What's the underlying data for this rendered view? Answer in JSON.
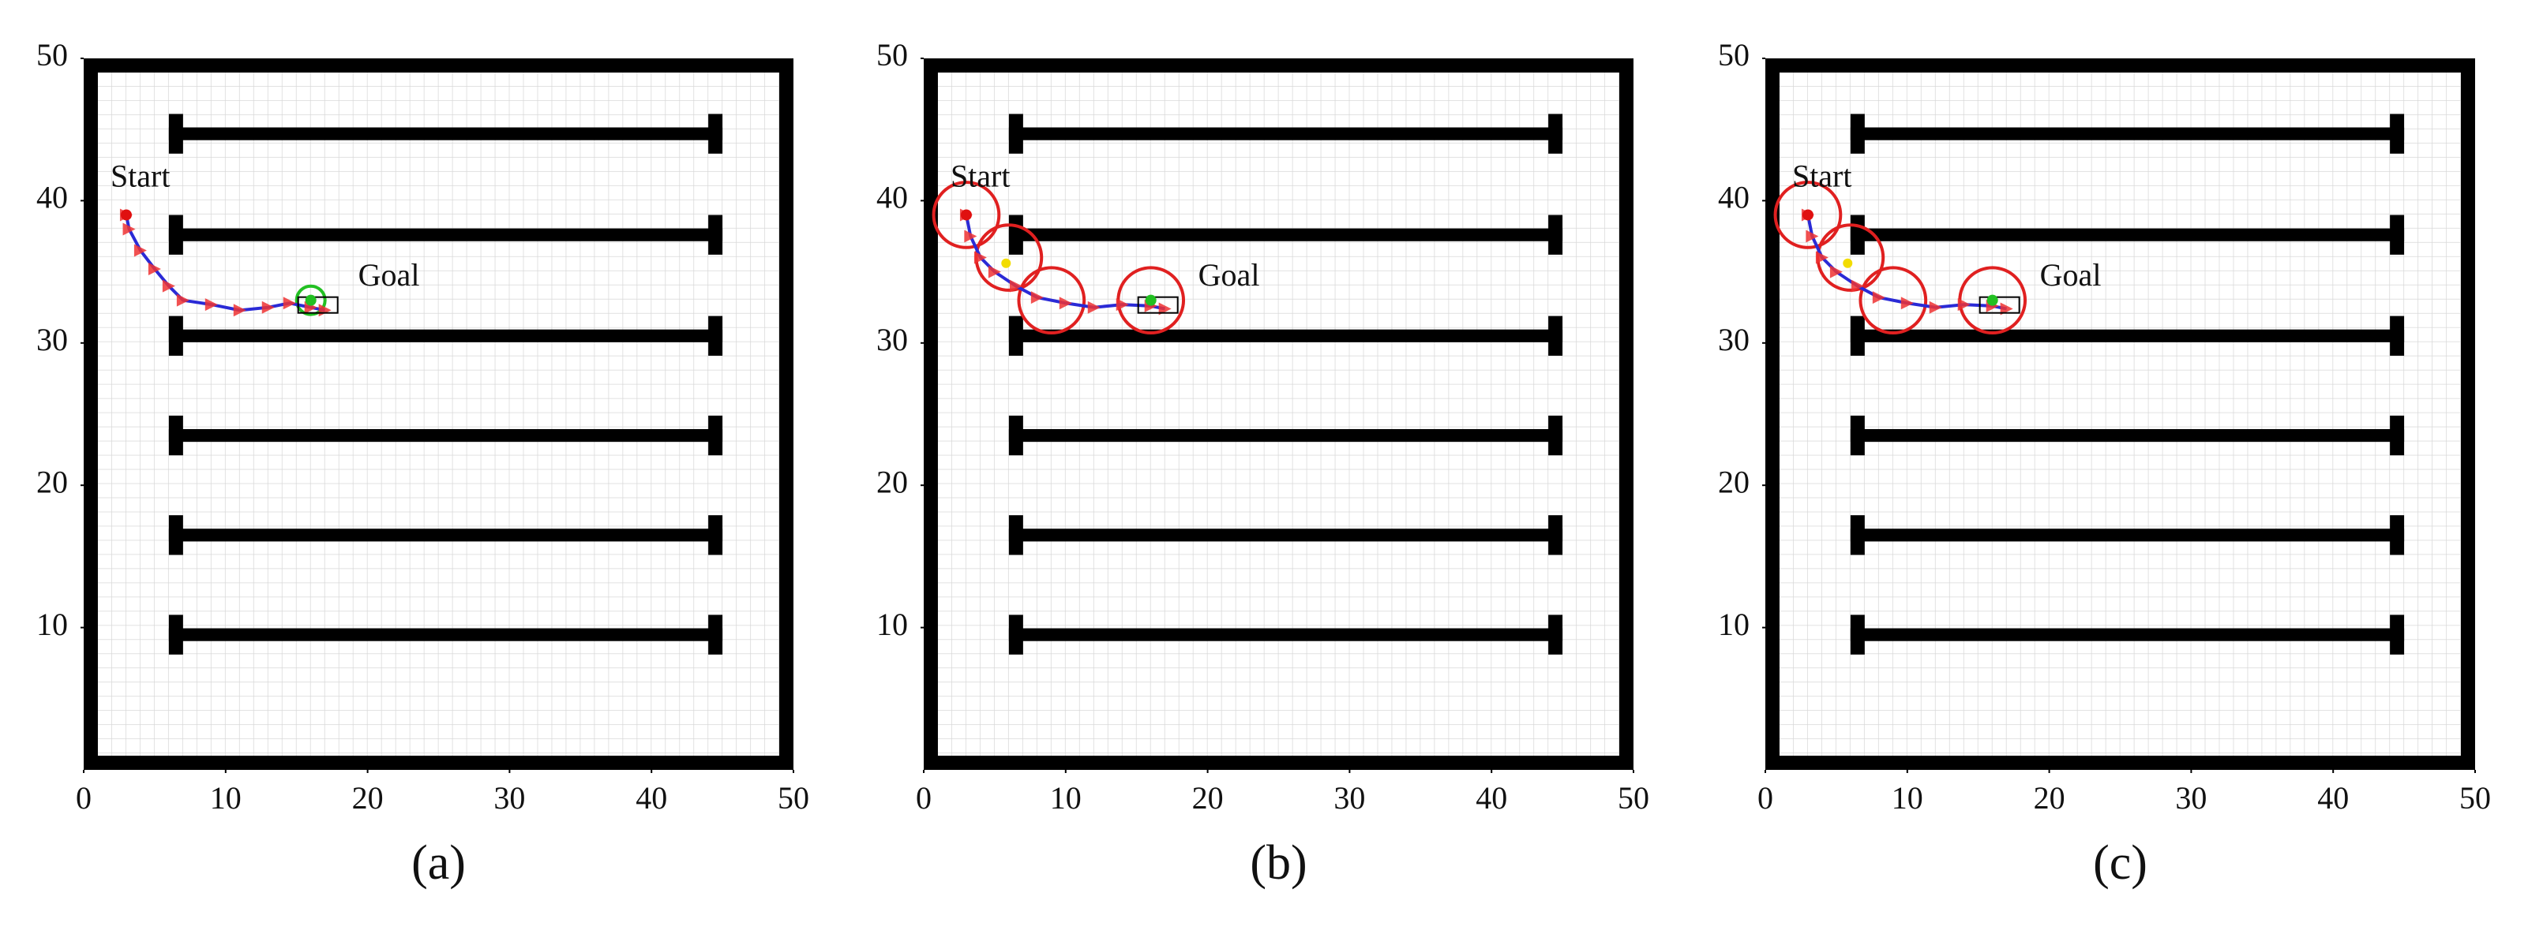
{
  "chart_data": [
    {
      "type": "line",
      "caption": "(a)",
      "xlim": [
        0,
        50
      ],
      "ylim": [
        0,
        50
      ],
      "xticks": [
        0,
        10,
        20,
        30,
        40,
        50
      ],
      "yticks": [
        10,
        20,
        30,
        40,
        50
      ],
      "shelf_rows": [
        44.7,
        37.6,
        30.5,
        23.5,
        16.5,
        9.5
      ],
      "shelf_x": [
        6,
        45
      ],
      "path": {
        "color": "#2a2ad6",
        "x": [
          3,
          3.2,
          4,
          5,
          6,
          7,
          9,
          11,
          13,
          14.5,
          16,
          17
        ],
        "y": [
          39,
          38,
          36.5,
          35.2,
          34,
          33,
          32.7,
          32.3,
          32.5,
          32.8,
          32.5,
          32.3
        ]
      },
      "start": {
        "label": "Start",
        "x": 3,
        "y": 39,
        "color": "#e01010"
      },
      "goal": {
        "label": "Goal",
        "x": 16,
        "y": 33,
        "color": "#22c022"
      },
      "circles": {
        "color": "#22c022",
        "x": [
          16
        ],
        "y": [
          33
        ],
        "r": [
          1
        ]
      }
    },
    {
      "type": "line",
      "caption": "(b)",
      "xlim": [
        0,
        50
      ],
      "ylim": [
        0,
        50
      ],
      "xticks": [
        0,
        10,
        20,
        30,
        40,
        50
      ],
      "yticks": [
        10,
        20,
        30,
        40,
        50
      ],
      "shelf_rows": [
        44.7,
        37.6,
        30.5,
        23.5,
        16.5,
        9.5
      ],
      "shelf_x": [
        6,
        45
      ],
      "path": {
        "color": "#2a2ad6",
        "x": [
          3,
          3.3,
          4,
          5,
          6.5,
          8,
          10,
          12,
          14,
          16,
          17
        ],
        "y": [
          39,
          37.5,
          36,
          35,
          34,
          33.2,
          32.8,
          32.5,
          32.7,
          32.6,
          32.4
        ]
      },
      "start": {
        "label": "Start",
        "x": 3,
        "y": 39,
        "color": "#e01010"
      },
      "goal": {
        "label": "Goal",
        "x": 16,
        "y": 33,
        "color": "#22c022"
      },
      "waypoint": {
        "x": 5.8,
        "y": 35.6,
        "color": "#f2dc00"
      },
      "circles": {
        "color": "#e02020",
        "x": [
          3,
          6,
          9,
          16
        ],
        "y": [
          39,
          36,
          33,
          33
        ],
        "r": [
          2.3,
          2.3,
          2.3,
          2.3
        ]
      }
    },
    {
      "type": "line",
      "caption": "(c)",
      "xlim": [
        0,
        50
      ],
      "ylim": [
        0,
        50
      ],
      "xticks": [
        0,
        10,
        20,
        30,
        40,
        50
      ],
      "yticks": [
        10,
        20,
        30,
        40,
        50
      ],
      "shelf_rows": [
        44.7,
        37.6,
        30.5,
        23.5,
        16.5,
        9.5
      ],
      "shelf_x": [
        6,
        45
      ],
      "path": {
        "color": "#2a2ad6",
        "x": [
          3,
          3.3,
          4,
          5,
          6.5,
          8,
          10,
          12,
          14,
          16,
          17
        ],
        "y": [
          39,
          37.5,
          36,
          35,
          34,
          33.2,
          32.8,
          32.5,
          32.7,
          32.6,
          32.4
        ]
      },
      "start": {
        "label": "Start",
        "x": 3,
        "y": 39,
        "color": "#e01010"
      },
      "goal": {
        "label": "Goal",
        "x": 16,
        "y": 33,
        "color": "#22c022"
      },
      "waypoint": {
        "x": 5.8,
        "y": 35.6,
        "color": "#f2dc00"
      },
      "circles": {
        "color": "#e02020",
        "x": [
          3,
          6,
          9,
          16
        ],
        "y": [
          39,
          36,
          33,
          33
        ],
        "r": [
          2.3,
          2.3,
          2.3,
          2.3
        ]
      }
    }
  ]
}
